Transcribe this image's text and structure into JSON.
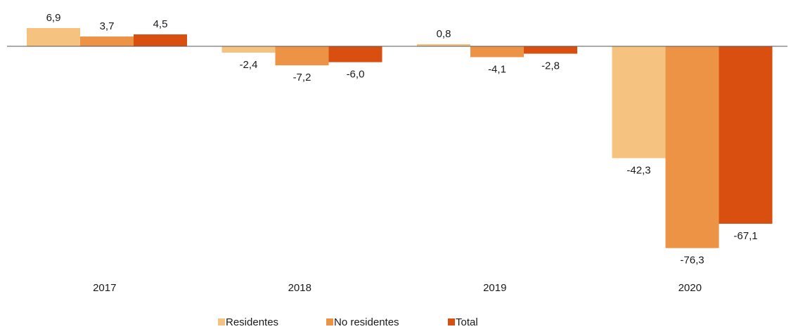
{
  "chart_data": {
    "type": "bar",
    "categories": [
      "2017",
      "2018",
      "2019",
      "2020"
    ],
    "series": [
      {
        "name": "Residentes",
        "color": "#f5c27f",
        "values": [
          6.9,
          -2.4,
          0.8,
          -42.3
        ]
      },
      {
        "name": "No residentes",
        "color": "#ec9345",
        "values": [
          3.7,
          -7.2,
          -4.1,
          -76.3
        ]
      },
      {
        "name": "Total",
        "color": "#d84f0f",
        "values": [
          4.5,
          -6.0,
          -2.8,
          -67.1
        ]
      }
    ],
    "legend_position": "bottom",
    "grid": false,
    "ylim": [
      -80,
      12
    ]
  }
}
